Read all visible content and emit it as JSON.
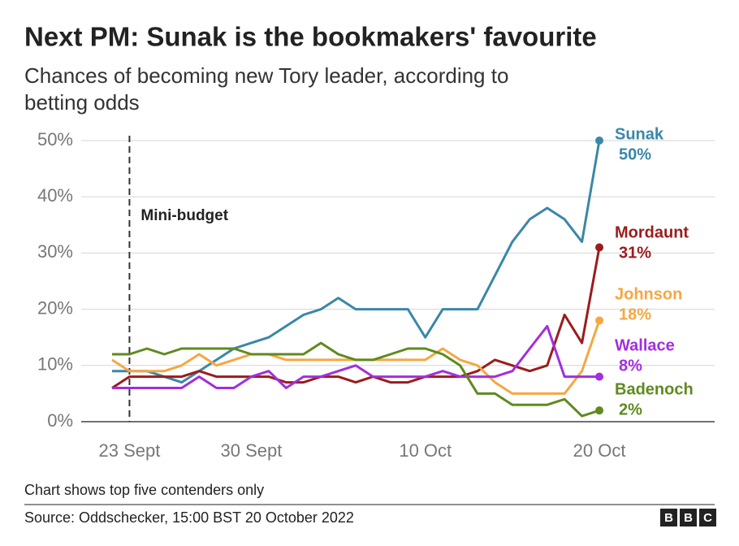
{
  "chart_data": {
    "type": "line",
    "title": "Next PM: Sunak is the bookmakers' favourite",
    "subtitle": [
      "Chances of becoming new Tory leader, according to",
      "betting odds"
    ],
    "annotation": "Mini-budget",
    "note": "Chart shows top five contenders only",
    "source": "Source: Oddschecker, 15:00 BST 20 October 2022",
    "logo": [
      "B",
      "B",
      "C"
    ],
    "categories": [
      null,
      "23 Sept",
      null,
      null,
      null,
      null,
      null,
      null,
      "30 Sept",
      null,
      null,
      null,
      null,
      null,
      null,
      null,
      null,
      null,
      "10 Oct",
      null,
      null,
      null,
      null,
      null,
      null,
      null,
      null,
      null,
      "20 Oct"
    ],
    "ylim": [
      0,
      50
    ],
    "yticks": [
      {
        "value": 0,
        "label": "0%"
      },
      {
        "value": 10,
        "label": "10%"
      },
      {
        "value": 20,
        "label": "20%"
      },
      {
        "value": 30,
        "label": "30%"
      },
      {
        "value": 40,
        "label": "40%"
      },
      {
        "value": 50,
        "label": "50%"
      }
    ],
    "grid": true,
    "series": [
      {
        "name": "Sunak",
        "color": "#3a87a8",
        "values": [
          9,
          9,
          9,
          8,
          7,
          9,
          11,
          13,
          14,
          15,
          17,
          19,
          20,
          22,
          20,
          20,
          20,
          20,
          15,
          20,
          20,
          20,
          26,
          32,
          36,
          38,
          36,
          32,
          50
        ],
        "value_labels": [
          null,
          null,
          null,
          null,
          null,
          null,
          null,
          null,
          null,
          null,
          null,
          null,
          null,
          null,
          null,
          null,
          null,
          null,
          null,
          null,
          null,
          null,
          null,
          null,
          null,
          null,
          null,
          null,
          "50%"
        ]
      },
      {
        "name": "Mordaunt",
        "color": "#9b1c1c",
        "values": [
          6,
          8,
          8,
          8,
          8,
          9,
          8,
          8,
          8,
          8,
          7,
          7,
          8,
          8,
          7,
          8,
          7,
          7,
          8,
          8,
          8,
          9,
          11,
          10,
          9,
          10,
          19,
          14,
          31
        ],
        "value_labels": [
          null,
          null,
          null,
          null,
          null,
          null,
          null,
          null,
          null,
          null,
          null,
          null,
          null,
          null,
          null,
          null,
          null,
          null,
          null,
          null,
          null,
          null,
          null,
          null,
          null,
          null,
          null,
          null,
          "31%"
        ]
      },
      {
        "name": "Johnson",
        "color": "#f5a742",
        "values": [
          11,
          9,
          9,
          9,
          10,
          12,
          10,
          11,
          12,
          12,
          11,
          11,
          11,
          11,
          11,
          11,
          11,
          11,
          11,
          13,
          11,
          10,
          7,
          5,
          5,
          5,
          5,
          9,
          18
        ],
        "value_labels": [
          null,
          null,
          null,
          null,
          null,
          null,
          null,
          null,
          null,
          null,
          null,
          null,
          null,
          null,
          null,
          null,
          null,
          null,
          null,
          null,
          null,
          null,
          null,
          null,
          null,
          null,
          null,
          null,
          "18%"
        ]
      },
      {
        "name": "Wallace",
        "color": "#a22ee0",
        "values": [
          6,
          6,
          6,
          6,
          6,
          8,
          6,
          6,
          8,
          9,
          6,
          8,
          8,
          9,
          10,
          8,
          8,
          8,
          8,
          9,
          8,
          8,
          8,
          9,
          13,
          17,
          8,
          8,
          8
        ],
        "value_labels": [
          null,
          null,
          null,
          null,
          null,
          null,
          null,
          null,
          null,
          null,
          null,
          null,
          null,
          null,
          null,
          null,
          null,
          null,
          null,
          null,
          null,
          null,
          null,
          null,
          null,
          null,
          null,
          null,
          "8%"
        ]
      },
      {
        "name": "Badenoch",
        "color": "#5f8a1f",
        "values": [
          12,
          12,
          13,
          12,
          13,
          13,
          13,
          13,
          12,
          12,
          12,
          12,
          14,
          12,
          11,
          11,
          12,
          13,
          13,
          12,
          10,
          5,
          5,
          3,
          3,
          3,
          4,
          1,
          2
        ],
        "value_labels": [
          null,
          null,
          null,
          null,
          null,
          null,
          null,
          null,
          null,
          null,
          null,
          null,
          null,
          null,
          null,
          null,
          null,
          null,
          null,
          null,
          null,
          null,
          null,
          null,
          null,
          null,
          null,
          null,
          "2%"
        ]
      }
    ]
  }
}
